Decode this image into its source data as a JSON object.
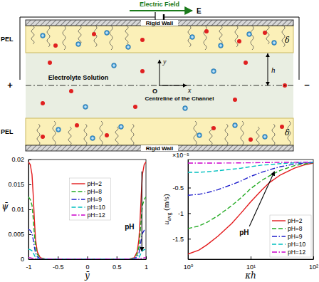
{
  "diagram": {
    "field_label": "Electric Field",
    "field_symbol": "E",
    "top_wall": "Rigid Wall",
    "bottom_wall": "Rigid Wall",
    "pel_top": "PEL",
    "pel_bottom": "PEL",
    "delta_top": "δ",
    "delta_bottom": "δ",
    "y_axis": "y",
    "x_axis": "x",
    "origin": "O",
    "half_height": "h",
    "solution": "Electrolyte Solution",
    "centreline": "Centreline of the Channel",
    "anode": "+",
    "cathode": "−"
  },
  "chart_data": [
    {
      "type": "line",
      "x_label": "ȳ",
      "y_label": "ψ̄",
      "xlim": [
        -1,
        1
      ],
      "ylim": [
        0,
        0.02
      ],
      "xticks": [
        -1,
        -0.5,
        0,
        0.5,
        1
      ],
      "yticks": [
        0,
        0.005,
        0.01,
        0.015,
        0.02
      ],
      "legend": "center",
      "annotation": "pH",
      "x": [
        -1,
        -0.97,
        -0.94,
        -0.92,
        -0.9,
        -0.88,
        -0.85,
        -0.8,
        -0.7,
        -0.5,
        0,
        0.5,
        0.7,
        0.8,
        0.85,
        0.88,
        0.9,
        0.92,
        0.94,
        0.97,
        1
      ],
      "series": [
        {
          "name": "pH=2",
          "color": "#e31a1c",
          "line_style": "solid",
          "values": [
            0.0195,
            0.019,
            0.017,
            0.013,
            0.008,
            0.004,
            0.0015,
            0.0003,
            0,
            0,
            0,
            0,
            0,
            0.0003,
            0.0015,
            0.004,
            0.008,
            0.013,
            0.017,
            0.019,
            0.0195
          ]
        },
        {
          "name": "pH=8",
          "color": "#22aa22",
          "line_style": "dashed",
          "values": [
            0.0125,
            0.012,
            0.0108,
            0.0083,
            0.0051,
            0.0025,
            0.001,
            0.0002,
            0,
            0,
            0,
            0,
            0,
            0.0002,
            0.001,
            0.0025,
            0.0051,
            0.0083,
            0.0108,
            0.012,
            0.0125
          ]
        },
        {
          "name": "pH=9",
          "color": "#1f1fcc",
          "line_style": "dashdot",
          "values": [
            0.006,
            0.0058,
            0.0052,
            0.004,
            0.0025,
            0.0012,
            0.0005,
            0.0001,
            0,
            0,
            0,
            0,
            0,
            0.0001,
            0.0005,
            0.0012,
            0.0025,
            0.004,
            0.0052,
            0.0058,
            0.006
          ]
        },
        {
          "name": "pH=10",
          "color": "#00c0c0",
          "line_style": "dashed",
          "values": [
            0.002,
            0.0019,
            0.0017,
            0.0013,
            0.0008,
            0.0004,
            0.0002,
            0,
            0,
            0,
            0,
            0,
            0,
            0,
            0.0002,
            0.0004,
            0.0008,
            0.0013,
            0.0017,
            0.0019,
            0.002
          ]
        },
        {
          "name": "pH=12",
          "color": "#cc00cc",
          "line_style": "dashdot",
          "values": [
            0.0003,
            0.0003,
            0.0002,
            0.0002,
            0.0001,
            0.0001,
            0,
            0,
            0,
            0,
            0,
            0,
            0,
            0,
            0,
            0.0001,
            0.0001,
            0.0002,
            0.0002,
            0.0003,
            0.0003
          ]
        }
      ]
    },
    {
      "type": "line",
      "log": "x",
      "x_label": "κh",
      "y_label": [
        "u",
        "avg",
        " (m/s)"
      ],
      "y_multiplier": "×10⁻⁵",
      "xlim": [
        1,
        100
      ],
      "ylim": [
        -1.9,
        0.05
      ],
      "xticks": [
        {
          "value": 1,
          "label": "10⁰"
        },
        {
          "value": 10,
          "label": "10¹"
        },
        {
          "value": 100,
          "label": "10²"
        }
      ],
      "yticks": [
        -1.5,
        -1,
        -0.5
      ],
      "legend": "lower right",
      "annotation": "pH",
      "x": [
        1,
        1.5,
        2,
        3,
        5,
        7,
        10,
        15,
        20,
        30,
        50,
        70,
        100
      ],
      "series": [
        {
          "name": "pH=2",
          "color": "#e31a1c",
          "line_style": "solid",
          "values": [
            -1.8,
            -1.72,
            -1.62,
            -1.45,
            -1.2,
            -1.0,
            -0.78,
            -0.55,
            -0.4,
            -0.25,
            -0.12,
            -0.06,
            -0.02
          ]
        },
        {
          "name": "pH=8",
          "color": "#22aa22",
          "line_style": "dashed",
          "values": [
            -1.3,
            -1.25,
            -1.18,
            -1.05,
            -0.85,
            -0.7,
            -0.52,
            -0.36,
            -0.27,
            -0.16,
            -0.07,
            -0.04,
            -0.01
          ]
        },
        {
          "name": "pH=9",
          "color": "#1f1fcc",
          "line_style": "dashdot",
          "values": [
            -0.65,
            -0.63,
            -0.6,
            -0.54,
            -0.44,
            -0.37,
            -0.28,
            -0.2,
            -0.15,
            -0.09,
            -0.04,
            -0.02,
            -0.01
          ]
        },
        {
          "name": "pH=10",
          "color": "#00c0c0",
          "line_style": "dashed",
          "values": [
            -0.2,
            -0.2,
            -0.19,
            -0.17,
            -0.14,
            -0.12,
            -0.09,
            -0.06,
            -0.05,
            -0.03,
            -0.015,
            -0.008,
            -0.004
          ]
        },
        {
          "name": "pH=12",
          "color": "#cc00cc",
          "line_style": "dashdot",
          "values": [
            -0.02,
            -0.02,
            -0.02,
            -0.019,
            -0.018,
            -0.016,
            -0.014,
            -0.011,
            -0.009,
            -0.006,
            -0.004,
            -0.002,
            -0.001
          ]
        }
      ]
    }
  ]
}
